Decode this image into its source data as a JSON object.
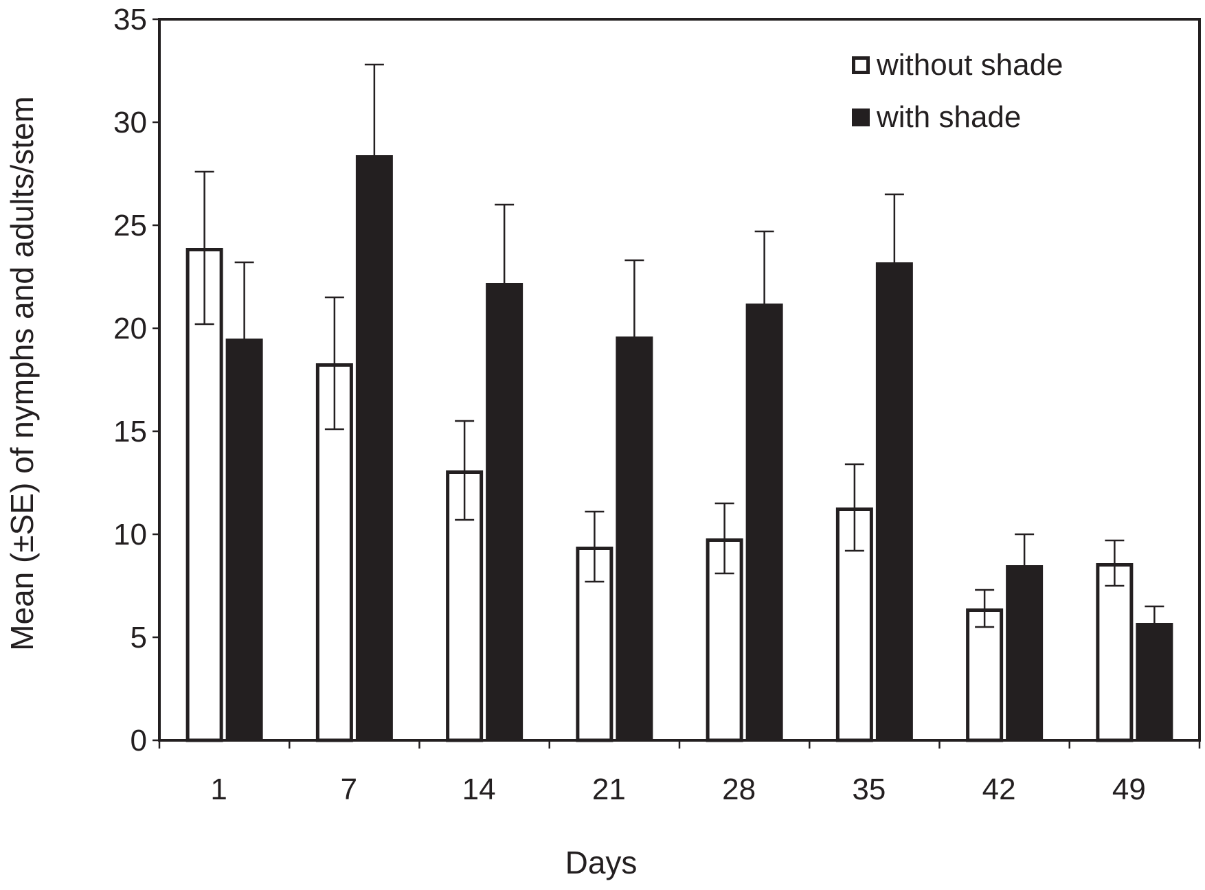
{
  "chart_data": {
    "type": "bar",
    "title": "",
    "xlabel": "Days",
    "ylabel": "Mean (±SE) of nymphs and adults/stem",
    "categories": [
      "1",
      "7",
      "14",
      "21",
      "28",
      "35",
      "42",
      "49"
    ],
    "ylim": [
      0,
      35
    ],
    "yticks": [
      0,
      5,
      10,
      15,
      20,
      25,
      30,
      35
    ],
    "grid": false,
    "legend_position": "top-right",
    "series": [
      {
        "name": "without shade",
        "fill": "#ffffff",
        "stroke": "#231f20",
        "values": [
          23.9,
          18.3,
          13.1,
          9.4,
          9.8,
          11.3,
          6.4,
          8.6
        ],
        "se": [
          3.7,
          3.2,
          2.4,
          1.7,
          1.7,
          2.1,
          0.9,
          1.1
        ]
      },
      {
        "name": "with shade",
        "fill": "#231f20",
        "stroke": "#231f20",
        "values": [
          19.5,
          28.4,
          22.2,
          19.6,
          21.2,
          23.2,
          8.5,
          5.7
        ],
        "se": [
          3.7,
          4.4,
          3.8,
          3.7,
          3.5,
          3.3,
          1.5,
          0.8
        ]
      }
    ]
  }
}
